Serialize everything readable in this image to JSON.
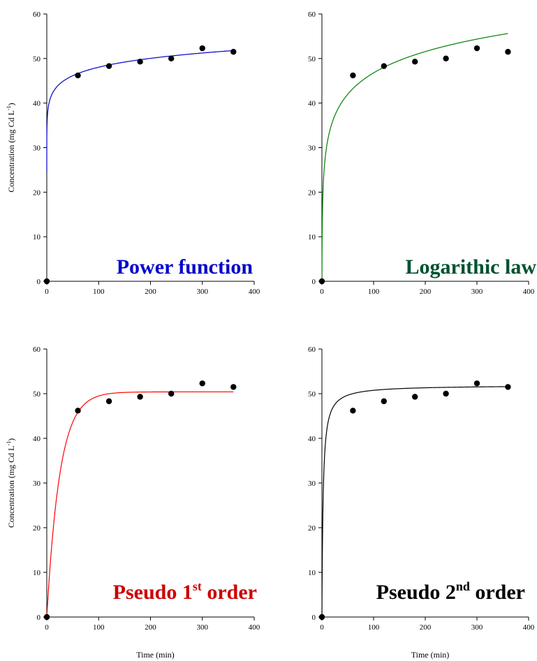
{
  "chart_data": [
    {
      "type": "scatter",
      "title": "Power function",
      "title_color": "#0000cc",
      "xlabel": "",
      "ylabel": "Concentration (mg Cd L",
      "ylabel_sup": "-1",
      "ylabel_end": ")",
      "xlim": [
        0,
        400
      ],
      "ylim": [
        0,
        60
      ],
      "xticks": [
        "0",
        "100",
        "200",
        "300",
        "400"
      ],
      "yticks": [
        "0",
        "10",
        "20",
        "30",
        "40",
        "50",
        "60"
      ],
      "grid": false,
      "points": [
        [
          0,
          0
        ],
        [
          60,
          46.2
        ],
        [
          120,
          48.3
        ],
        [
          180,
          49.3
        ],
        [
          240,
          50.0
        ],
        [
          300,
          52.3
        ],
        [
          360,
          51.5
        ]
      ],
      "fit": {
        "model": "power",
        "color": "#0000cc",
        "a": 36.7,
        "b": 0.0585,
        "x_start": 0.001
      }
    },
    {
      "type": "scatter",
      "title": "Logarithic law",
      "title_color": "#00512f",
      "xlabel": "",
      "ylabel": "",
      "xlim": [
        0,
        400
      ],
      "ylim": [
        0,
        60
      ],
      "xticks": [
        "0",
        "100",
        "200",
        "300",
        "400"
      ],
      "yticks": [
        "0",
        "10",
        "20",
        "30",
        "40",
        "50",
        "60"
      ],
      "grid": false,
      "points": [
        [
          0,
          0
        ],
        [
          60,
          46.2
        ],
        [
          120,
          48.3
        ],
        [
          180,
          49.3
        ],
        [
          240,
          50.0
        ],
        [
          300,
          52.3
        ],
        [
          360,
          51.5
        ]
      ],
      "fit": {
        "model": "log",
        "color": "#008000",
        "a": 15.0,
        "b": 6.9,
        "x_start": 0.001
      }
    },
    {
      "type": "scatter",
      "title": "Pseudo 1",
      "title_sup": "st",
      "title_end": " order",
      "title_color": "#cc0000",
      "xlabel": "Time (min)",
      "ylabel": "Concentration (mg Cd L",
      "ylabel_sup": "-1",
      "ylabel_end": ")",
      "xlim": [
        0,
        400
      ],
      "ylim": [
        0,
        60
      ],
      "xticks": [
        "0",
        "100",
        "200",
        "300",
        "400"
      ],
      "yticks": [
        "0",
        "10",
        "20",
        "30",
        "40",
        "50",
        "60"
      ],
      "grid": false,
      "points": [
        [
          0,
          0
        ],
        [
          60,
          46.2
        ],
        [
          120,
          48.3
        ],
        [
          180,
          49.3
        ],
        [
          240,
          50.0
        ],
        [
          300,
          52.3
        ],
        [
          360,
          51.5
        ]
      ],
      "fit": {
        "model": "first_order",
        "color": "#ff0000",
        "qe": 50.4,
        "k": 0.04,
        "x_start": 0
      }
    },
    {
      "type": "scatter",
      "title": "Pseudo 2",
      "title_sup": "nd",
      "title_end": " order",
      "title_color": "#000000",
      "xlabel": "Time (min)",
      "ylabel": "",
      "xlim": [
        0,
        400
      ],
      "ylim": [
        0,
        60
      ],
      "xticks": [
        "0",
        "100",
        "200",
        "300",
        "400"
      ],
      "yticks": [
        "0",
        "10",
        "20",
        "30",
        "40",
        "50",
        "60"
      ],
      "grid": false,
      "points": [
        [
          0,
          0
        ],
        [
          60,
          46.2
        ],
        [
          120,
          48.3
        ],
        [
          180,
          49.3
        ],
        [
          240,
          50.0
        ],
        [
          300,
          52.3
        ],
        [
          360,
          51.5
        ]
      ],
      "fit": {
        "model": "second_order",
        "color": "#000000",
        "qe": 51.9,
        "k": 0.0085,
        "x_start": 0
      }
    }
  ]
}
